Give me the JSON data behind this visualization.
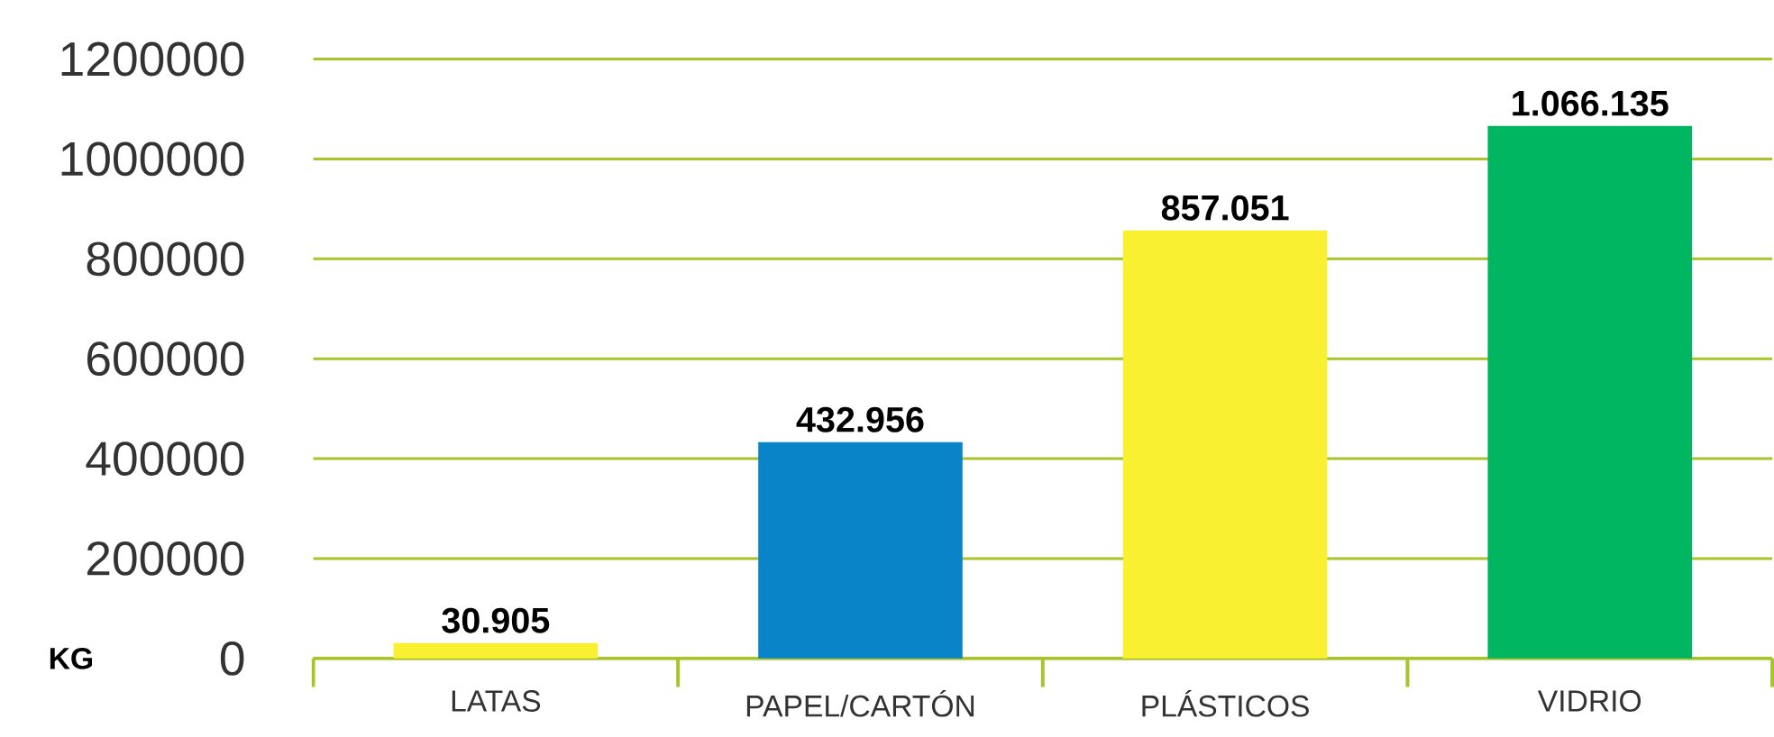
{
  "chart_data": {
    "type": "bar",
    "ylabel": "KG",
    "categories": [
      "LATAS",
      "PAPEL/CARTÓN",
      "PLÁSTICOS",
      "VIDRIO"
    ],
    "values": [
      30905,
      432956,
      857051,
      1066135
    ],
    "colors": [
      "#f8f030",
      "#0a84c8",
      "#f8f030",
      "#00b660"
    ],
    "value_labels": [
      "30.905",
      "432.956",
      "857.051",
      "1.066.135"
    ],
    "ylim": [
      0,
      1200000
    ],
    "yticks": [
      0,
      200000,
      400000,
      600000,
      800000,
      1000000,
      1200000
    ],
    "grid": "y"
  }
}
